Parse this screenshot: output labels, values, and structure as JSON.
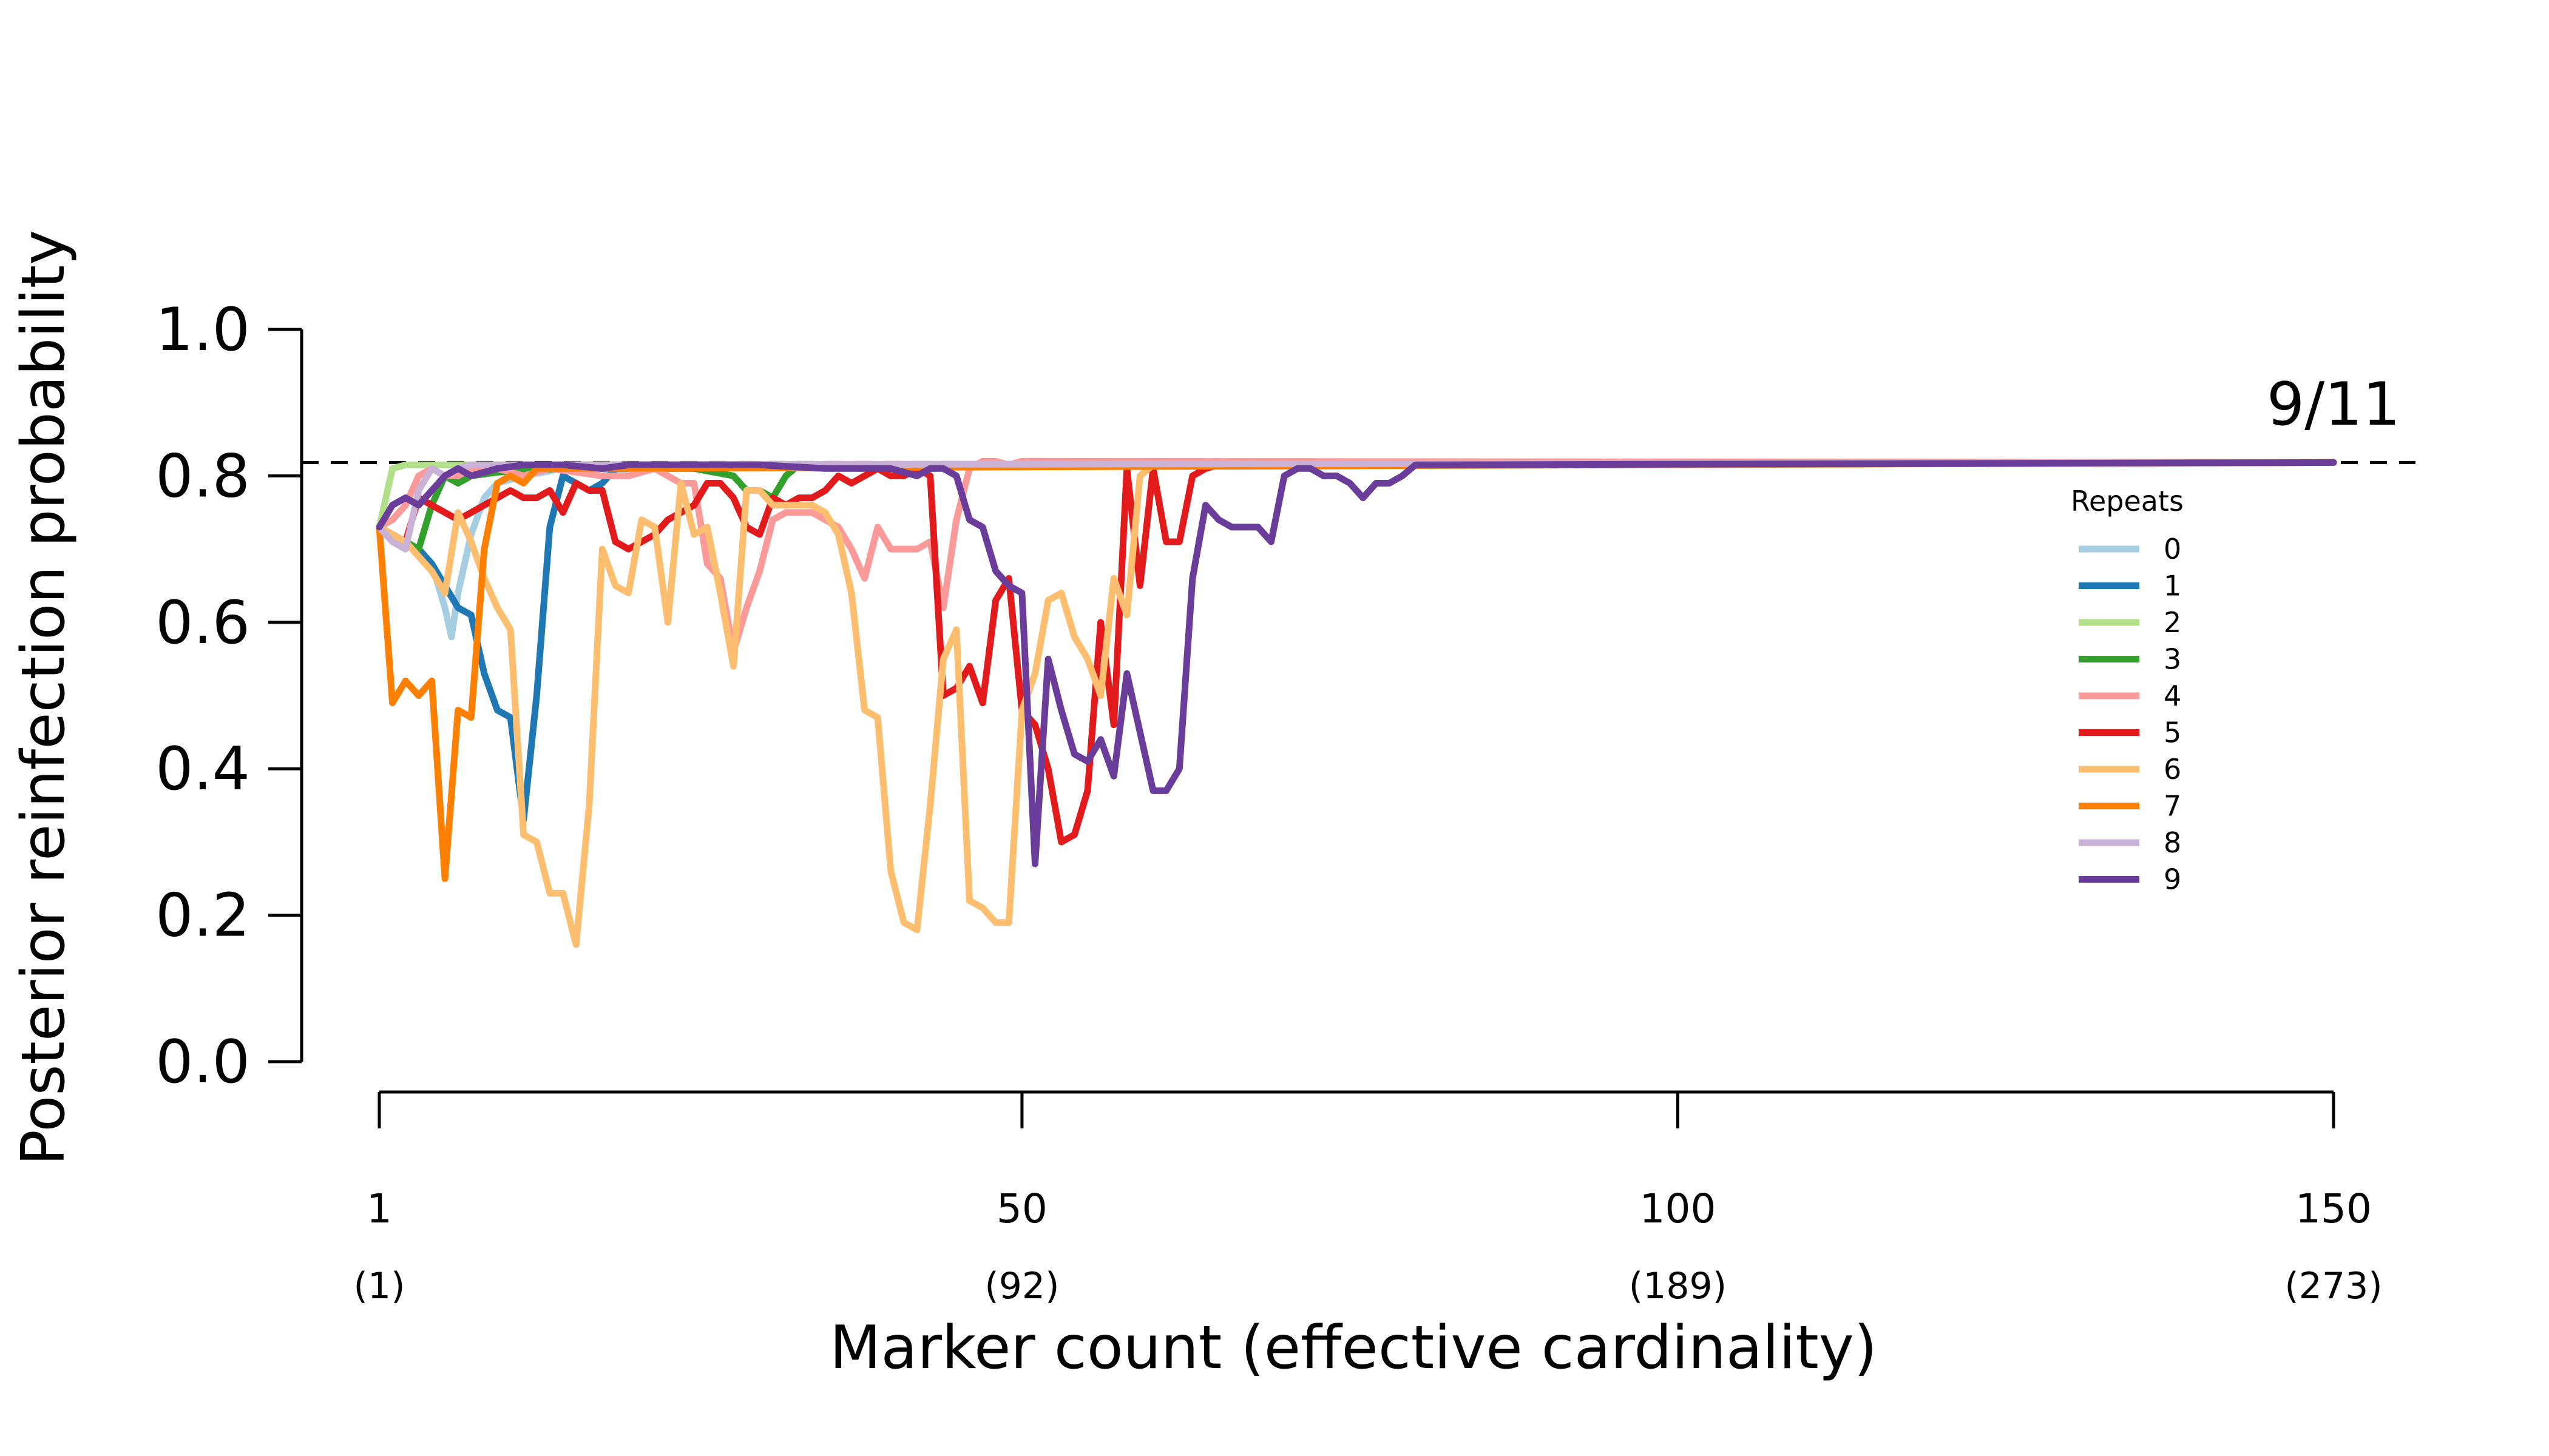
{
  "chart_data": {
    "type": "line",
    "xlabel": "Marker count (effective cardinality)",
    "ylabel": "Posterior reinfection probability",
    "xlim": [
      1,
      150
    ],
    "ylim": [
      0,
      1
    ],
    "x_ticks": [
      {
        "value": 1,
        "label": "1",
        "sublabel": "(1)"
      },
      {
        "value": 50,
        "label": "50",
        "sublabel": "(92)"
      },
      {
        "value": 100,
        "label": "100",
        "sublabel": "(189)"
      },
      {
        "value": 150,
        "label": "150",
        "sublabel": "(273)"
      }
    ],
    "y_ticks": [
      "0.0",
      "0.2",
      "0.4",
      "0.6",
      "0.8",
      "1.0"
    ],
    "reference_line": {
      "value": 0.8182,
      "label": "9/11",
      "style": "dashed"
    },
    "legend": {
      "title": "Repeats",
      "position": "right"
    },
    "series": [
      {
        "name": "0",
        "color": "#a6cee3",
        "points": [
          [
            1,
            0.73
          ],
          [
            2,
            0.72
          ],
          [
            3,
            0.71
          ],
          [
            4,
            0.7
          ],
          [
            5,
            0.68
          ],
          [
            6,
            0.62
          ],
          [
            6.5,
            0.58
          ],
          [
            7,
            0.64
          ],
          [
            8,
            0.72
          ],
          [
            9,
            0.77
          ],
          [
            10,
            0.79
          ],
          [
            12,
            0.8
          ],
          [
            15,
            0.81
          ],
          [
            18,
            0.8
          ],
          [
            20,
            0.81
          ],
          [
            25,
            0.815
          ],
          [
            150,
            0.8182
          ]
        ]
      },
      {
        "name": "1",
        "color": "#1f78b4",
        "points": [
          [
            1,
            0.73
          ],
          [
            2,
            0.72
          ],
          [
            3,
            0.71
          ],
          [
            4,
            0.7
          ],
          [
            5,
            0.68
          ],
          [
            6,
            0.65
          ],
          [
            7,
            0.62
          ],
          [
            8,
            0.61
          ],
          [
            9,
            0.53
          ],
          [
            10,
            0.48
          ],
          [
            11,
            0.47
          ],
          [
            12,
            0.33
          ],
          [
            13,
            0.5
          ],
          [
            14,
            0.73
          ],
          [
            15,
            0.8
          ],
          [
            16,
            0.79
          ],
          [
            17,
            0.78
          ],
          [
            18,
            0.79
          ],
          [
            19,
            0.81
          ],
          [
            20,
            0.815
          ],
          [
            150,
            0.8182
          ]
        ]
      },
      {
        "name": "2",
        "color": "#b2df8a",
        "points": [
          [
            1,
            0.73
          ],
          [
            2,
            0.81
          ],
          [
            3,
            0.815
          ],
          [
            150,
            0.8182
          ]
        ]
      },
      {
        "name": "3",
        "color": "#33a02c",
        "points": [
          [
            1,
            0.73
          ],
          [
            2,
            0.72
          ],
          [
            3,
            0.71
          ],
          [
            4,
            0.7
          ],
          [
            5,
            0.76
          ],
          [
            6,
            0.8
          ],
          [
            7,
            0.79
          ],
          [
            8,
            0.8
          ],
          [
            10,
            0.805
          ],
          [
            15,
            0.81
          ],
          [
            20,
            0.81
          ],
          [
            25,
            0.81
          ],
          [
            28,
            0.8
          ],
          [
            29,
            0.78
          ],
          [
            30,
            0.78
          ],
          [
            31,
            0.77
          ],
          [
            32,
            0.8
          ],
          [
            33,
            0.815
          ],
          [
            150,
            0.8182
          ]
        ]
      },
      {
        "name": "4",
        "color": "#fb9a99",
        "points": [
          [
            1,
            0.73
          ],
          [
            2,
            0.74
          ],
          [
            3,
            0.76
          ],
          [
            4,
            0.8
          ],
          [
            5,
            0.81
          ],
          [
            6,
            0.8
          ],
          [
            7,
            0.8
          ],
          [
            8,
            0.81
          ],
          [
            10,
            0.81
          ],
          [
            12,
            0.8
          ],
          [
            14,
            0.81
          ],
          [
            18,
            0.8
          ],
          [
            20,
            0.8
          ],
          [
            22,
            0.81
          ],
          [
            23,
            0.8
          ],
          [
            24,
            0.79
          ],
          [
            25,
            0.79
          ],
          [
            26,
            0.68
          ],
          [
            27,
            0.66
          ],
          [
            28,
            0.56
          ],
          [
            29,
            0.62
          ],
          [
            30,
            0.67
          ],
          [
            31,
            0.74
          ],
          [
            32,
            0.75
          ],
          [
            33,
            0.75
          ],
          [
            34,
            0.75
          ],
          [
            35,
            0.74
          ],
          [
            36,
            0.73
          ],
          [
            37,
            0.7
          ],
          [
            38,
            0.66
          ],
          [
            39,
            0.73
          ],
          [
            40,
            0.7
          ],
          [
            41,
            0.7
          ],
          [
            42,
            0.7
          ],
          [
            43,
            0.71
          ],
          [
            44,
            0.62
          ],
          [
            45,
            0.74
          ],
          [
            46,
            0.81
          ],
          [
            47,
            0.82
          ],
          [
            48,
            0.82
          ],
          [
            49,
            0.815
          ],
          [
            50,
            0.82
          ],
          [
            150,
            0.8182
          ]
        ]
      },
      {
        "name": "5",
        "color": "#e31a1c",
        "points": [
          [
            1,
            0.73
          ],
          [
            2,
            0.72
          ],
          [
            3,
            0.71
          ],
          [
            4,
            0.77
          ],
          [
            5,
            0.76
          ],
          [
            6,
            0.75
          ],
          [
            7,
            0.74
          ],
          [
            8,
            0.75
          ],
          [
            9,
            0.76
          ],
          [
            10,
            0.77
          ],
          [
            11,
            0.78
          ],
          [
            12,
            0.77
          ],
          [
            13,
            0.77
          ],
          [
            14,
            0.78
          ],
          [
            15,
            0.75
          ],
          [
            16,
            0.79
          ],
          [
            17,
            0.78
          ],
          [
            18,
            0.78
          ],
          [
            19,
            0.71
          ],
          [
            20,
            0.7
          ],
          [
            21,
            0.71
          ],
          [
            22,
            0.72
          ],
          [
            23,
            0.74
          ],
          [
            24,
            0.75
          ],
          [
            25,
            0.76
          ],
          [
            26,
            0.79
          ],
          [
            27,
            0.79
          ],
          [
            28,
            0.77
          ],
          [
            29,
            0.73
          ],
          [
            30,
            0.72
          ],
          [
            31,
            0.77
          ],
          [
            32,
            0.76
          ],
          [
            33,
            0.77
          ],
          [
            34,
            0.77
          ],
          [
            35,
            0.78
          ],
          [
            36,
            0.8
          ],
          [
            37,
            0.79
          ],
          [
            38,
            0.8
          ],
          [
            39,
            0.81
          ],
          [
            40,
            0.8
          ],
          [
            41,
            0.8
          ],
          [
            42,
            0.81
          ],
          [
            43,
            0.8
          ],
          [
            44,
            0.5
          ],
          [
            45,
            0.51
          ],
          [
            46,
            0.54
          ],
          [
            47,
            0.49
          ],
          [
            48,
            0.63
          ],
          [
            49,
            0.66
          ],
          [
            50,
            0.48
          ],
          [
            51,
            0.46
          ],
          [
            52,
            0.4
          ],
          [
            53,
            0.3
          ],
          [
            54,
            0.31
          ],
          [
            55,
            0.37
          ],
          [
            56,
            0.6
          ],
          [
            57,
            0.46
          ],
          [
            58,
            0.81
          ],
          [
            59,
            0.65
          ],
          [
            60,
            0.81
          ],
          [
            61,
            0.71
          ],
          [
            62,
            0.71
          ],
          [
            63,
            0.8
          ],
          [
            64,
            0.81
          ],
          [
            65,
            0.815
          ],
          [
            150,
            0.8182
          ]
        ]
      },
      {
        "name": "6",
        "color": "#fdbf6f",
        "points": [
          [
            1,
            0.73
          ],
          [
            2,
            0.72
          ],
          [
            3,
            0.71
          ],
          [
            4,
            0.69
          ],
          [
            5,
            0.67
          ],
          [
            6,
            0.64
          ],
          [
            7,
            0.75
          ],
          [
            8,
            0.71
          ],
          [
            9,
            0.66
          ],
          [
            10,
            0.62
          ],
          [
            11,
            0.59
          ],
          [
            12,
            0.31
          ],
          [
            13,
            0.3
          ],
          [
            14,
            0.23
          ],
          [
            15,
            0.23
          ],
          [
            16,
            0.16
          ],
          [
            17,
            0.35
          ],
          [
            18,
            0.7
          ],
          [
            19,
            0.65
          ],
          [
            20,
            0.64
          ],
          [
            21,
            0.74
          ],
          [
            22,
            0.73
          ],
          [
            23,
            0.6
          ],
          [
            24,
            0.79
          ],
          [
            25,
            0.72
          ],
          [
            26,
            0.73
          ],
          [
            27,
            0.64
          ],
          [
            28,
            0.54
          ],
          [
            29,
            0.78
          ],
          [
            30,
            0.78
          ],
          [
            31,
            0.76
          ],
          [
            32,
            0.76
          ],
          [
            33,
            0.76
          ],
          [
            34,
            0.76
          ],
          [
            35,
            0.75
          ],
          [
            36,
            0.72
          ],
          [
            37,
            0.64
          ],
          [
            38,
            0.48
          ],
          [
            39,
            0.47
          ],
          [
            40,
            0.26
          ],
          [
            41,
            0.19
          ],
          [
            42,
            0.18
          ],
          [
            43,
            0.35
          ],
          [
            44,
            0.55
          ],
          [
            45,
            0.59
          ],
          [
            46,
            0.22
          ],
          [
            47,
            0.21
          ],
          [
            48,
            0.19
          ],
          [
            49,
            0.19
          ],
          [
            50,
            0.48
          ],
          [
            51,
            0.53
          ],
          [
            52,
            0.63
          ],
          [
            53,
            0.64
          ],
          [
            54,
            0.58
          ],
          [
            55,
            0.55
          ],
          [
            56,
            0.5
          ],
          [
            57,
            0.66
          ],
          [
            58,
            0.61
          ],
          [
            59,
            0.8
          ],
          [
            60,
            0.815
          ],
          [
            150,
            0.8182
          ]
        ]
      },
      {
        "name": "7",
        "color": "#ff7f00",
        "points": [
          [
            1,
            0.73
          ],
          [
            2,
            0.49
          ],
          [
            3,
            0.52
          ],
          [
            4,
            0.5
          ],
          [
            5,
            0.52
          ],
          [
            6,
            0.25
          ],
          [
            7,
            0.48
          ],
          [
            8,
            0.47
          ],
          [
            9,
            0.7
          ],
          [
            10,
            0.79
          ],
          [
            11,
            0.8
          ],
          [
            12,
            0.79
          ],
          [
            13,
            0.81
          ],
          [
            14,
            0.81
          ],
          [
            150,
            0.8182
          ]
        ]
      },
      {
        "name": "8",
        "color": "#cab2d6",
        "points": [
          [
            1,
            0.73
          ],
          [
            2,
            0.71
          ],
          [
            3,
            0.7
          ],
          [
            4,
            0.78
          ],
          [
            5,
            0.81
          ],
          [
            6,
            0.8
          ],
          [
            7,
            0.81
          ],
          [
            8,
            0.815
          ],
          [
            150,
            0.8182
          ]
        ]
      },
      {
        "name": "9",
        "color": "#6a3d9a",
        "points": [
          [
            1,
            0.73
          ],
          [
            2,
            0.76
          ],
          [
            3,
            0.77
          ],
          [
            4,
            0.76
          ],
          [
            5,
            0.78
          ],
          [
            6,
            0.8
          ],
          [
            7,
            0.81
          ],
          [
            8,
            0.8
          ],
          [
            10,
            0.81
          ],
          [
            12,
            0.815
          ],
          [
            15,
            0.815
          ],
          [
            18,
            0.81
          ],
          [
            20,
            0.815
          ],
          [
            25,
            0.815
          ],
          [
            30,
            0.815
          ],
          [
            35,
            0.81
          ],
          [
            40,
            0.81
          ],
          [
            42,
            0.8
          ],
          [
            43,
            0.81
          ],
          [
            44,
            0.81
          ],
          [
            45,
            0.8
          ],
          [
            46,
            0.74
          ],
          [
            47,
            0.73
          ],
          [
            48,
            0.67
          ],
          [
            49,
            0.65
          ],
          [
            50,
            0.64
          ],
          [
            51,
            0.27
          ],
          [
            52,
            0.55
          ],
          [
            53,
            0.48
          ],
          [
            54,
            0.42
          ],
          [
            55,
            0.41
          ],
          [
            56,
            0.44
          ],
          [
            57,
            0.39
          ],
          [
            58,
            0.53
          ],
          [
            59,
            0.45
          ],
          [
            60,
            0.37
          ],
          [
            61,
            0.37
          ],
          [
            62,
            0.4
          ],
          [
            63,
            0.66
          ],
          [
            64,
            0.76
          ],
          [
            65,
            0.74
          ],
          [
            66,
            0.73
          ],
          [
            67,
            0.73
          ],
          [
            68,
            0.73
          ],
          [
            69,
            0.71
          ],
          [
            70,
            0.8
          ],
          [
            71,
            0.81
          ],
          [
            72,
            0.81
          ],
          [
            73,
            0.8
          ],
          [
            74,
            0.8
          ],
          [
            75,
            0.79
          ],
          [
            76,
            0.77
          ],
          [
            77,
            0.79
          ],
          [
            78,
            0.79
          ],
          [
            79,
            0.8
          ],
          [
            80,
            0.815
          ],
          [
            150,
            0.8182
          ]
        ]
      }
    ]
  }
}
